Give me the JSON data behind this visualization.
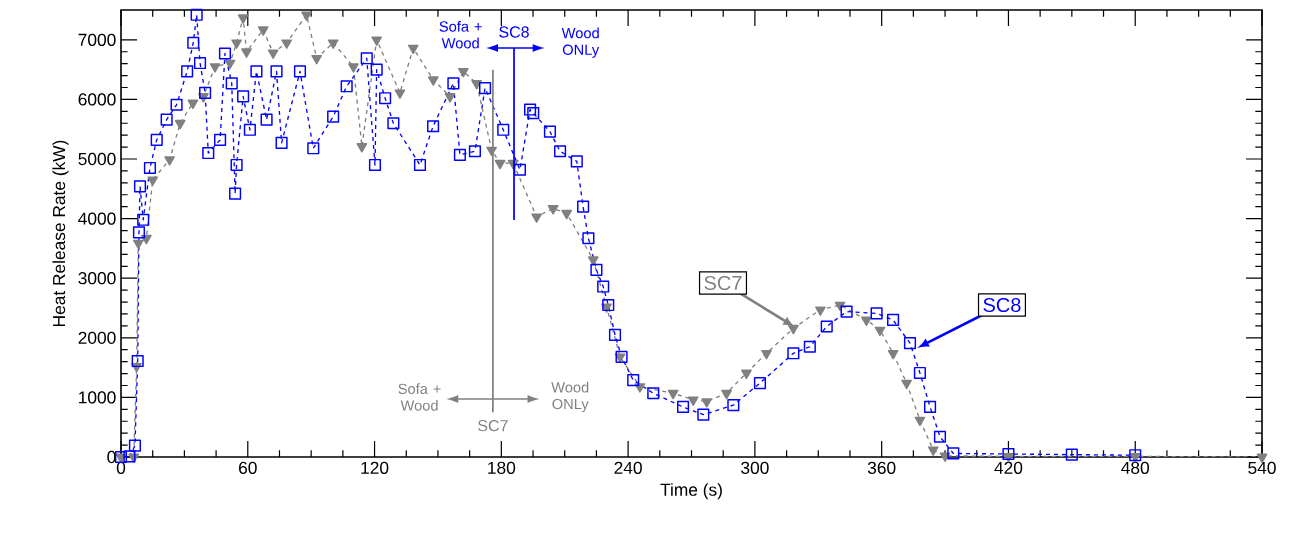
{
  "chart_data": {
    "type": "line",
    "xlabel": "Time (s)",
    "ylabel": "Heat Release Rate (kW)",
    "xlim": [
      0,
      540
    ],
    "ylim": [
      0,
      7500
    ],
    "xticks": [
      0,
      60,
      120,
      180,
      240,
      300,
      360,
      420,
      480,
      540
    ],
    "yticks": [
      0,
      1000,
      2000,
      3000,
      4000,
      5000,
      6000,
      7000
    ],
    "line_style": "dashed",
    "series": [
      {
        "name": "SC7",
        "color": "#808080",
        "marker": "triangle",
        "x": [
          0,
          6,
          7.4,
          8.2,
          12,
          15,
          23,
          28,
          34,
          39,
          44.5,
          51.6,
          54.7,
          57.8,
          59.4,
          67.3,
          72,
          78.4,
          87.8,
          92.6,
          100.4,
          110,
          114,
          121,
          132,
          138.3,
          147.8,
          155.7,
          162,
          168.3,
          175.4,
          179.4,
          185.6,
          196.7,
          204.5,
          210.9,
          223.5,
          229.8,
          236.2,
          245.6,
          261.3,
          270.8,
          277.2,
          286.6,
          296,
          305.5,
          318.2,
          331,
          340.3,
          352.8,
          359.2,
          365.4,
          371.8,
          378.1,
          384.4,
          390,
          420,
          480,
          540
        ],
        "values": [
          0,
          0,
          1520,
          3590,
          3670,
          4650,
          4990,
          5600,
          5940,
          6050,
          6550,
          6610,
          6950,
          7370,
          6800,
          7170,
          6780,
          6950,
          7420,
          6690,
          6950,
          6550,
          5210,
          7000,
          6110,
          6860,
          6330,
          6050,
          6470,
          6270,
          5150,
          4930,
          4930,
          4030,
          4170,
          4090,
          3310,
          2520,
          1680,
          1180,
          1070,
          960,
          930,
          1070,
          1410,
          1740,
          2160,
          2470,
          2550,
          2300,
          2130,
          1740,
          1240,
          620,
          120,
          20,
          10,
          10,
          0
        ]
      },
      {
        "name": "SC8",
        "color": "#0000ff",
        "marker": "square",
        "x": [
          0,
          4,
          6.6,
          7.9,
          8.5,
          9,
          10.5,
          13.7,
          16.9,
          21.6,
          26.3,
          31.3,
          34.2,
          35.8,
          37.4,
          39.8,
          41.3,
          46.9,
          49.2,
          52.4,
          54,
          54.7,
          57.8,
          61,
          64.1,
          68.9,
          73.6,
          76,
          84.7,
          91,
          100.4,
          106.8,
          116.3,
          120.2,
          121,
          125,
          128.9,
          141.5,
          147.7,
          157.3,
          160.4,
          167.5,
          172.3,
          180.9,
          188.8,
          193.6,
          195.1,
          203,
          207.8,
          215.7,
          218.7,
          221.2,
          225,
          228.2,
          230.6,
          233.8,
          236.9,
          242.4,
          251.9,
          266,
          275.6,
          289.8,
          302.4,
          318.2,
          326,
          334,
          343.4,
          357.6,
          365.4,
          373.4,
          378.1,
          382.9,
          387.6,
          393.9,
          420,
          450,
          480
        ],
        "values": [
          0,
          10,
          190,
          1610,
          3770,
          4540,
          3980,
          4850,
          5320,
          5660,
          5910,
          6470,
          6950,
          7420,
          6610,
          6110,
          5100,
          5320,
          6770,
          6270,
          4420,
          4900,
          6050,
          5490,
          6470,
          5660,
          6470,
          5270,
          6470,
          5180,
          5710,
          6220,
          6690,
          4900,
          6500,
          6020,
          5600,
          4900,
          5550,
          6270,
          5070,
          5130,
          6190,
          5490,
          4820,
          5830,
          5770,
          5460,
          5130,
          4960,
          4200,
          3670,
          3140,
          2860,
          2550,
          2050,
          1680,
          1290,
          1070,
          840,
          710,
          870,
          1240,
          1740,
          1850,
          2190,
          2440,
          2410,
          2300,
          1910,
          1410,
          840,
          340,
          60,
          50,
          40,
          30
        ]
      }
    ],
    "ref_lines": [
      {
        "axis": "x",
        "value": 176,
        "label": "SC7",
        "color": "#808080"
      },
      {
        "axis": "x",
        "value": 186,
        "label": "SC8",
        "color": "#0000ff"
      }
    ],
    "annotations": [
      "Sofa + Wood",
      "Wood ONLy",
      "Sofa + Wood",
      "Wood ONLy"
    ]
  }
}
